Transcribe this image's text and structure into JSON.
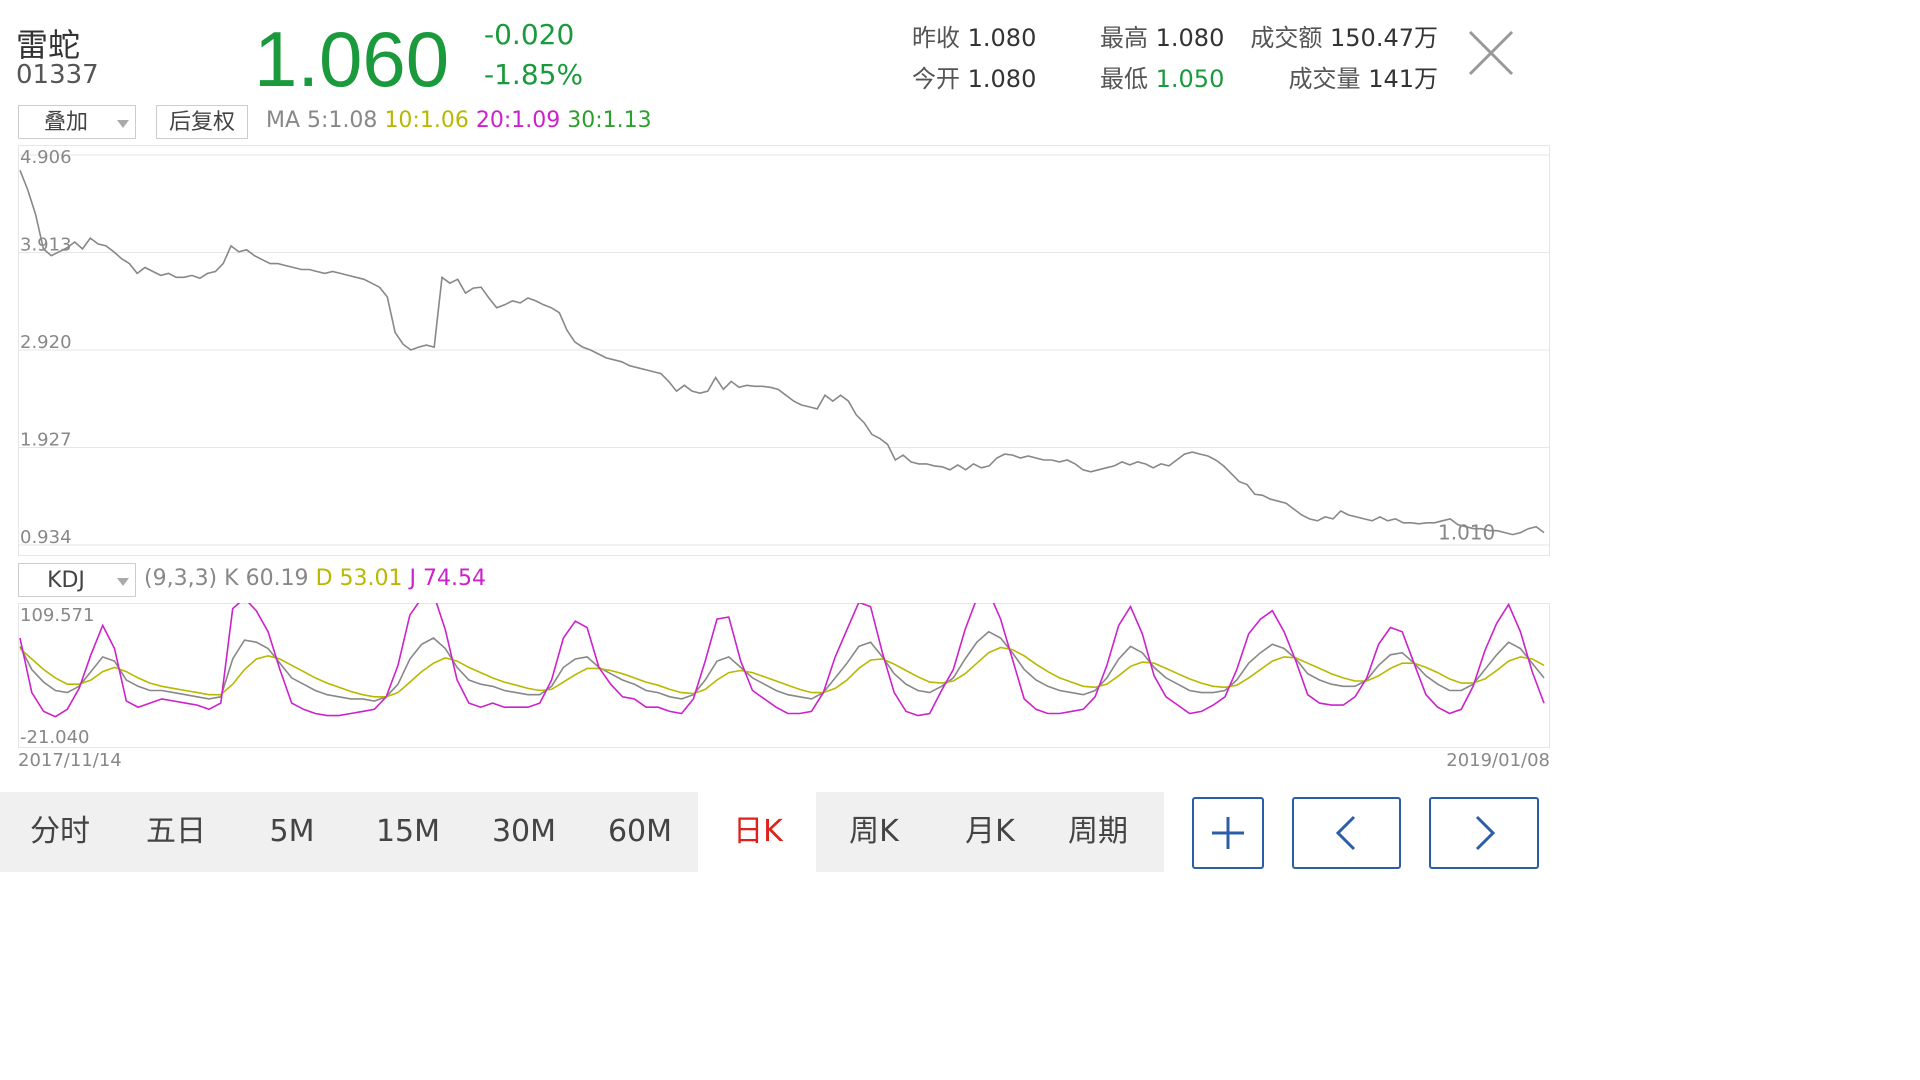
{
  "stock": {
    "name": "雷蛇",
    "code": "01337",
    "price": "1.060",
    "change": "-0.020",
    "change_pct": "-1.85%"
  },
  "stats": {
    "prev_close_label": "昨收",
    "prev_close": "1.080",
    "open_label": "今开",
    "open": "1.080",
    "high_label": "最高",
    "high": "1.080",
    "low_label": "最低",
    "low": "1.050",
    "turnover_label": "成交额",
    "turnover": "150.47万",
    "volume_label": "成交量",
    "volume": "141万"
  },
  "controls": {
    "overlay_select": "叠加",
    "adjust_button": "后复权",
    "indicator_select": "KDJ"
  },
  "ma": {
    "label": "MA",
    "ma5": "5:1.08",
    "ma10": "10:1.06",
    "ma20": "20:1.09",
    "ma30": "30:1.13"
  },
  "kdj": {
    "params": "(9,3,3)",
    "k": "K 60.19",
    "d": "D 53.01",
    "j": "J 74.54"
  },
  "colors": {
    "down": "#1a9a3c",
    "up": "#e0201a",
    "ma10": "#b8b800",
    "ma20": "#cc22cc",
    "ma30": "#2e9e2e",
    "price_line": "#888888",
    "k_line": "#888888",
    "d_line": "#b8b800",
    "j_line": "#cc22cc",
    "button_border": "#2a5fa8"
  },
  "tabs": [
    "分时",
    "五日",
    "5M",
    "15M",
    "30M",
    "60M",
    "日K",
    "周K",
    "月K",
    "周期"
  ],
  "active_tab": "日K",
  "nav_icons": [
    "plus-icon",
    "chevron-left-icon",
    "chevron-right-icon"
  ],
  "chart_data": [
    {
      "type": "line",
      "name": "price",
      "y_ticks": [
        "4.906",
        "3.913",
        "2.920",
        "1.927",
        "0.934"
      ],
      "ylim": [
        0.934,
        4.906
      ],
      "x_start": "2017/11/14",
      "x_end": "2019/01/08",
      "annotation": "1.010",
      "values": [
        4.75,
        4.55,
        4.3,
        3.95,
        3.88,
        3.92,
        3.96,
        4.02,
        3.95,
        4.06,
        4.0,
        3.98,
        3.92,
        3.85,
        3.8,
        3.7,
        3.76,
        3.72,
        3.68,
        3.7,
        3.66,
        3.66,
        3.68,
        3.65,
        3.7,
        3.72,
        3.8,
        3.98,
        3.92,
        3.94,
        3.88,
        3.84,
        3.8,
        3.8,
        3.78,
        3.76,
        3.74,
        3.74,
        3.72,
        3.7,
        3.72,
        3.7,
        3.68,
        3.66,
        3.64,
        3.6,
        3.56,
        3.46,
        3.1,
        2.98,
        2.92,
        2.95,
        2.97,
        2.95,
        3.66,
        3.6,
        3.64,
        3.5,
        3.55,
        3.56,
        3.45,
        3.35,
        3.38,
        3.42,
        3.4,
        3.45,
        3.42,
        3.38,
        3.35,
        3.3,
        3.12,
        3.0,
        2.95,
        2.92,
        2.88,
        2.84,
        2.82,
        2.8,
        2.76,
        2.74,
        2.72,
        2.7,
        2.68,
        2.6,
        2.5,
        2.56,
        2.5,
        2.48,
        2.5,
        2.64,
        2.52,
        2.6,
        2.54,
        2.56,
        2.55,
        2.55,
        2.54,
        2.52,
        2.46,
        2.4,
        2.36,
        2.34,
        2.32,
        2.46,
        2.4,
        2.46,
        2.4,
        2.26,
        2.18,
        2.06,
        2.02,
        1.96,
        1.8,
        1.85,
        1.78,
        1.76,
        1.76,
        1.74,
        1.73,
        1.7,
        1.75,
        1.7,
        1.76,
        1.72,
        1.74,
        1.82,
        1.86,
        1.85,
        1.82,
        1.84,
        1.82,
        1.8,
        1.8,
        1.78,
        1.8,
        1.76,
        1.7,
        1.68,
        1.7,
        1.72,
        1.74,
        1.78,
        1.75,
        1.78,
        1.76,
        1.72,
        1.76,
        1.74,
        1.8,
        1.86,
        1.88,
        1.86,
        1.84,
        1.8,
        1.74,
        1.66,
        1.58,
        1.55,
        1.45,
        1.44,
        1.4,
        1.38,
        1.36,
        1.3,
        1.24,
        1.2,
        1.18,
        1.22,
        1.2,
        1.28,
        1.24,
        1.22,
        1.2,
        1.18,
        1.22,
        1.18,
        1.2,
        1.16,
        1.16,
        1.15,
        1.16,
        1.16,
        1.18,
        1.2,
        1.14,
        1.12,
        1.1,
        1.1,
        1.08,
        1.08,
        1.06,
        1.04,
        1.06,
        1.1,
        1.12,
        1.06
      ]
    },
    {
      "type": "line",
      "name": "KDJ",
      "y_ticks": [
        "109.571",
        "-21.040"
      ],
      "ylim": [
        -21.04,
        109.571
      ],
      "x_start": "2017/11/14",
      "x_end": "2019/01/08",
      "series": [
        {
          "name": "K",
          "values": [
            72,
            50,
            38,
            30,
            28,
            34,
            48,
            62,
            58,
            40,
            34,
            30,
            30,
            28,
            26,
            24,
            22,
            24,
            60,
            78,
            76,
            70,
            56,
            42,
            36,
            30,
            26,
            24,
            22,
            22,
            20,
            24,
            36,
            60,
            74,
            80,
            70,
            52,
            40,
            36,
            34,
            30,
            28,
            26,
            26,
            34,
            52,
            60,
            62,
            52,
            46,
            40,
            36,
            30,
            28,
            24,
            22,
            26,
            40,
            58,
            62,
            52,
            42,
            36,
            30,
            26,
            24,
            22,
            28,
            42,
            56,
            72,
            76,
            62,
            46,
            36,
            30,
            28,
            34,
            42,
            60,
            76,
            86,
            80,
            66,
            50,
            40,
            34,
            30,
            28,
            26,
            30,
            42,
            60,
            72,
            66,
            52,
            42,
            36,
            30,
            28,
            28,
            30,
            40,
            56,
            66,
            74,
            70,
            60,
            46,
            40,
            36,
            34,
            34,
            40,
            54,
            64,
            66,
            56,
            44,
            36,
            30,
            30,
            36,
            50,
            64,
            76,
            70,
            56,
            42
          ]
        },
        {
          "name": "D",
          "values": [
            70,
            60,
            50,
            42,
            36,
            36,
            40,
            48,
            52,
            48,
            42,
            37,
            34,
            32,
            30,
            28,
            26,
            26,
            36,
            50,
            60,
            63,
            60,
            54,
            48,
            42,
            37,
            33,
            29,
            26,
            24,
            24,
            28,
            38,
            48,
            56,
            61,
            58,
            52,
            47,
            42,
            38,
            35,
            32,
            30,
            31,
            38,
            45,
            51,
            51,
            49,
            46,
            42,
            38,
            35,
            31,
            28,
            27,
            31,
            40,
            47,
            49,
            47,
            43,
            39,
            35,
            31,
            28,
            28,
            32,
            40,
            51,
            59,
            60,
            55,
            49,
            43,
            38,
            37,
            39,
            46,
            56,
            66,
            71,
            69,
            63,
            55,
            48,
            42,
            38,
            34,
            33,
            36,
            44,
            53,
            57,
            56,
            51,
            46,
            41,
            37,
            34,
            33,
            35,
            42,
            50,
            58,
            62,
            61,
            56,
            51,
            46,
            42,
            39,
            39,
            44,
            51,
            56,
            56,
            52,
            47,
            41,
            37,
            37,
            41,
            49,
            58,
            62,
            60,
            54
          ]
        },
        {
          "name": "J",
          "values": [
            80,
            28,
            10,
            5,
            12,
            32,
            64,
            92,
            70,
            20,
            14,
            18,
            22,
            20,
            18,
            16,
            12,
            18,
            108,
            118,
            106,
            86,
            50,
            18,
            12,
            8,
            6,
            6,
            8,
            10,
            12,
            24,
            54,
            102,
            118,
            122,
            88,
            40,
            18,
            14,
            18,
            14,
            14,
            14,
            18,
            40,
            80,
            96,
            90,
            52,
            36,
            24,
            22,
            14,
            14,
            10,
            8,
            22,
            58,
            98,
            100,
            58,
            30,
            22,
            14,
            8,
            8,
            10,
            28,
            62,
            88,
            114,
            110,
            66,
            28,
            10,
            6,
            8,
            30,
            50,
            88,
            118,
            124,
            98,
            60,
            22,
            12,
            8,
            8,
            10,
            12,
            24,
            54,
            92,
            110,
            84,
            44,
            24,
            16,
            8,
            10,
            16,
            24,
            50,
            84,
            98,
            106,
            86,
            58,
            26,
            18,
            16,
            16,
            24,
            42,
            74,
            90,
            86,
            56,
            26,
            14,
            8,
            12,
            34,
            68,
            94,
            112,
            86,
            48,
            18
          ]
        }
      ]
    }
  ]
}
